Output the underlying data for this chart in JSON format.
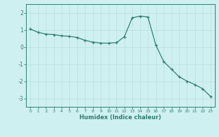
{
  "x_values": [
    0,
    1,
    2,
    3,
    4,
    5,
    6,
    7,
    8,
    9,
    10,
    11,
    12,
    13,
    14,
    15,
    16,
    17,
    18,
    19,
    20,
    21,
    22,
    23
  ],
  "y_values": [
    1.05,
    0.85,
    0.75,
    0.72,
    0.65,
    0.62,
    0.55,
    0.38,
    0.28,
    0.22,
    0.22,
    0.25,
    0.6,
    1.7,
    1.8,
    1.75,
    0.12,
    -0.85,
    -1.3,
    -1.75,
    -2.0,
    -2.2,
    -2.45,
    -2.9
  ],
  "xlabel": "Humidex (Indice chaleur)",
  "xlim": [
    -0.5,
    23.5
  ],
  "ylim": [
    -3.5,
    2.5
  ],
  "yticks": [
    -3,
    -2,
    -1,
    0,
    1,
    2
  ],
  "xticks": [
    0,
    1,
    2,
    3,
    4,
    5,
    6,
    7,
    8,
    9,
    10,
    11,
    12,
    13,
    14,
    15,
    16,
    17,
    18,
    19,
    20,
    21,
    22,
    23
  ],
  "line_color": "#2d7d6e",
  "marker_color": "#2d7d6e",
  "bg_color": "#cff0f0",
  "grid_color": "#b8dede",
  "axis_color": "#2d7d6e",
  "tick_label_color": "#2d7d6e",
  "xlabel_color": "#2d7d6e"
}
